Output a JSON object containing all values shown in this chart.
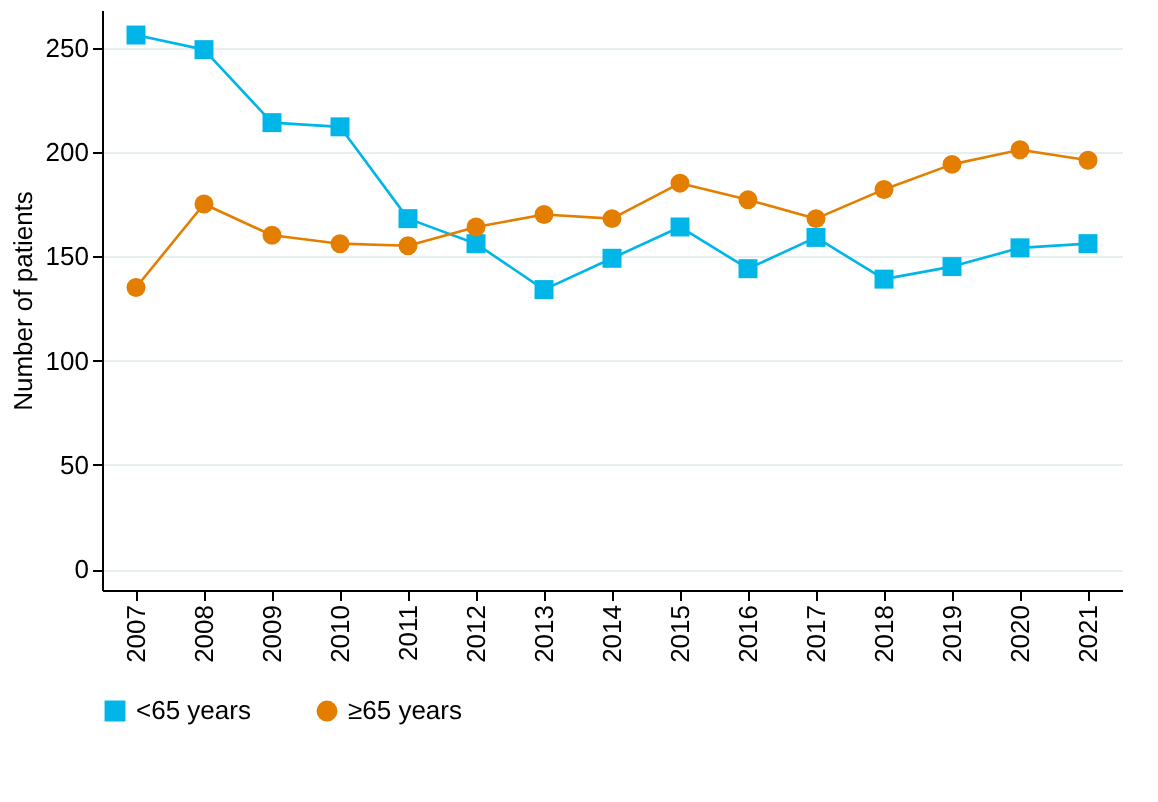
{
  "chart_data": {
    "type": "line",
    "ylabel": "Number of patients",
    "categories": [
      "2007",
      "2008",
      "2009",
      "2010",
      "2011",
      "2012",
      "2013",
      "2014",
      "2015",
      "2016",
      "2017",
      "2018",
      "2019",
      "2020",
      "2021"
    ],
    "series": [
      {
        "name": "<65 years",
        "color": "#00b5e8",
        "marker": "square",
        "values": [
          256,
          249,
          214,
          212,
          168,
          156,
          134,
          149,
          164,
          144,
          159,
          139,
          145,
          154,
          156
        ]
      },
      {
        "name": "≥65 years",
        "color": "#e37e00",
        "marker": "circle",
        "values": [
          135,
          175,
          160,
          156,
          155,
          164,
          170,
          168,
          185,
          177,
          168,
          182,
          194,
          201,
          196
        ]
      }
    ],
    "ylim": [
      -10,
      268
    ],
    "yticks": [
      0,
      50,
      100,
      150,
      200,
      250
    ],
    "grid": "y",
    "legend": "bottom",
    "line_style": "solid"
  }
}
